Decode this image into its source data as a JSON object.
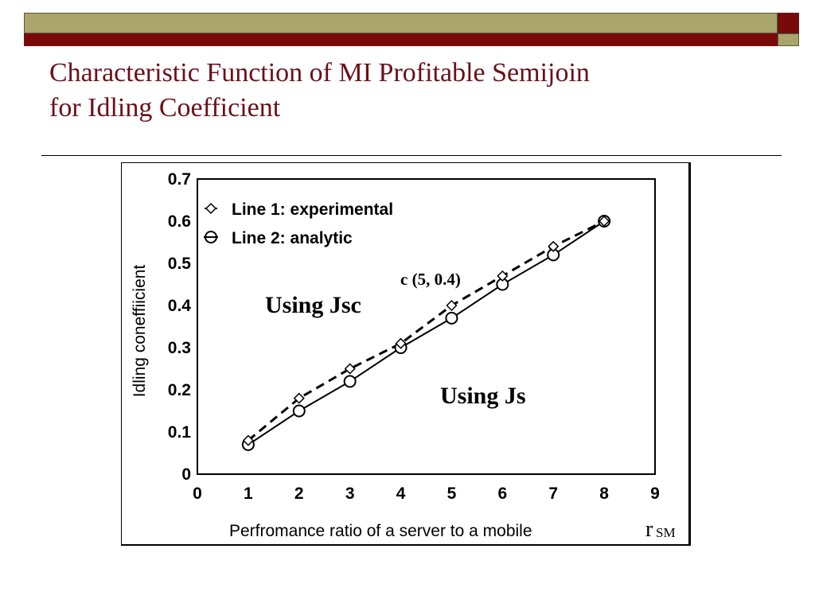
{
  "slide": {
    "title_line1": "Characteristic Function of MI Profitable Semijoin",
    "title_line2": "for Idling Coefficient",
    "colors": {
      "title": "#6b0f1a",
      "band_olive": "#a9a56b",
      "band_red": "#7a0a0a"
    }
  },
  "chart_data": {
    "type": "line",
    "title": "",
    "xlabel": "Perfromance ratio of a server to a mobile",
    "xlabel_symbol": "r",
    "xlabel_symbol_sub": "SM",
    "ylabel": "Idling coneffiicient",
    "xlim": [
      0,
      9
    ],
    "ylim": [
      0,
      0.7
    ],
    "x_ticks": [
      "0",
      "1",
      "2",
      "3",
      "4",
      "5",
      "6",
      "7",
      "8",
      "9"
    ],
    "y_ticks": [
      "0",
      "0.1",
      "0.2",
      "0.3",
      "0.4",
      "0.5",
      "0.6",
      "0.7"
    ],
    "grid": false,
    "legend_position": "top-left",
    "x": [
      1,
      2,
      3,
      4,
      5,
      6,
      7,
      8
    ],
    "series": [
      {
        "name": "Line 1: experimental",
        "marker": "diamond",
        "style": "dashed",
        "values": [
          0.08,
          0.18,
          0.25,
          0.31,
          0.4,
          0.47,
          0.54,
          0.6
        ]
      },
      {
        "name": "Line 2: analytic",
        "marker": "circle",
        "style": "solid",
        "values": [
          0.07,
          0.15,
          0.22,
          0.3,
          0.37,
          0.45,
          0.52,
          0.6
        ]
      }
    ],
    "annotations": [
      {
        "text": "c (5, 0.4)"
      },
      {
        "text": "Using Jsc"
      },
      {
        "text": "Using Js"
      }
    ]
  }
}
